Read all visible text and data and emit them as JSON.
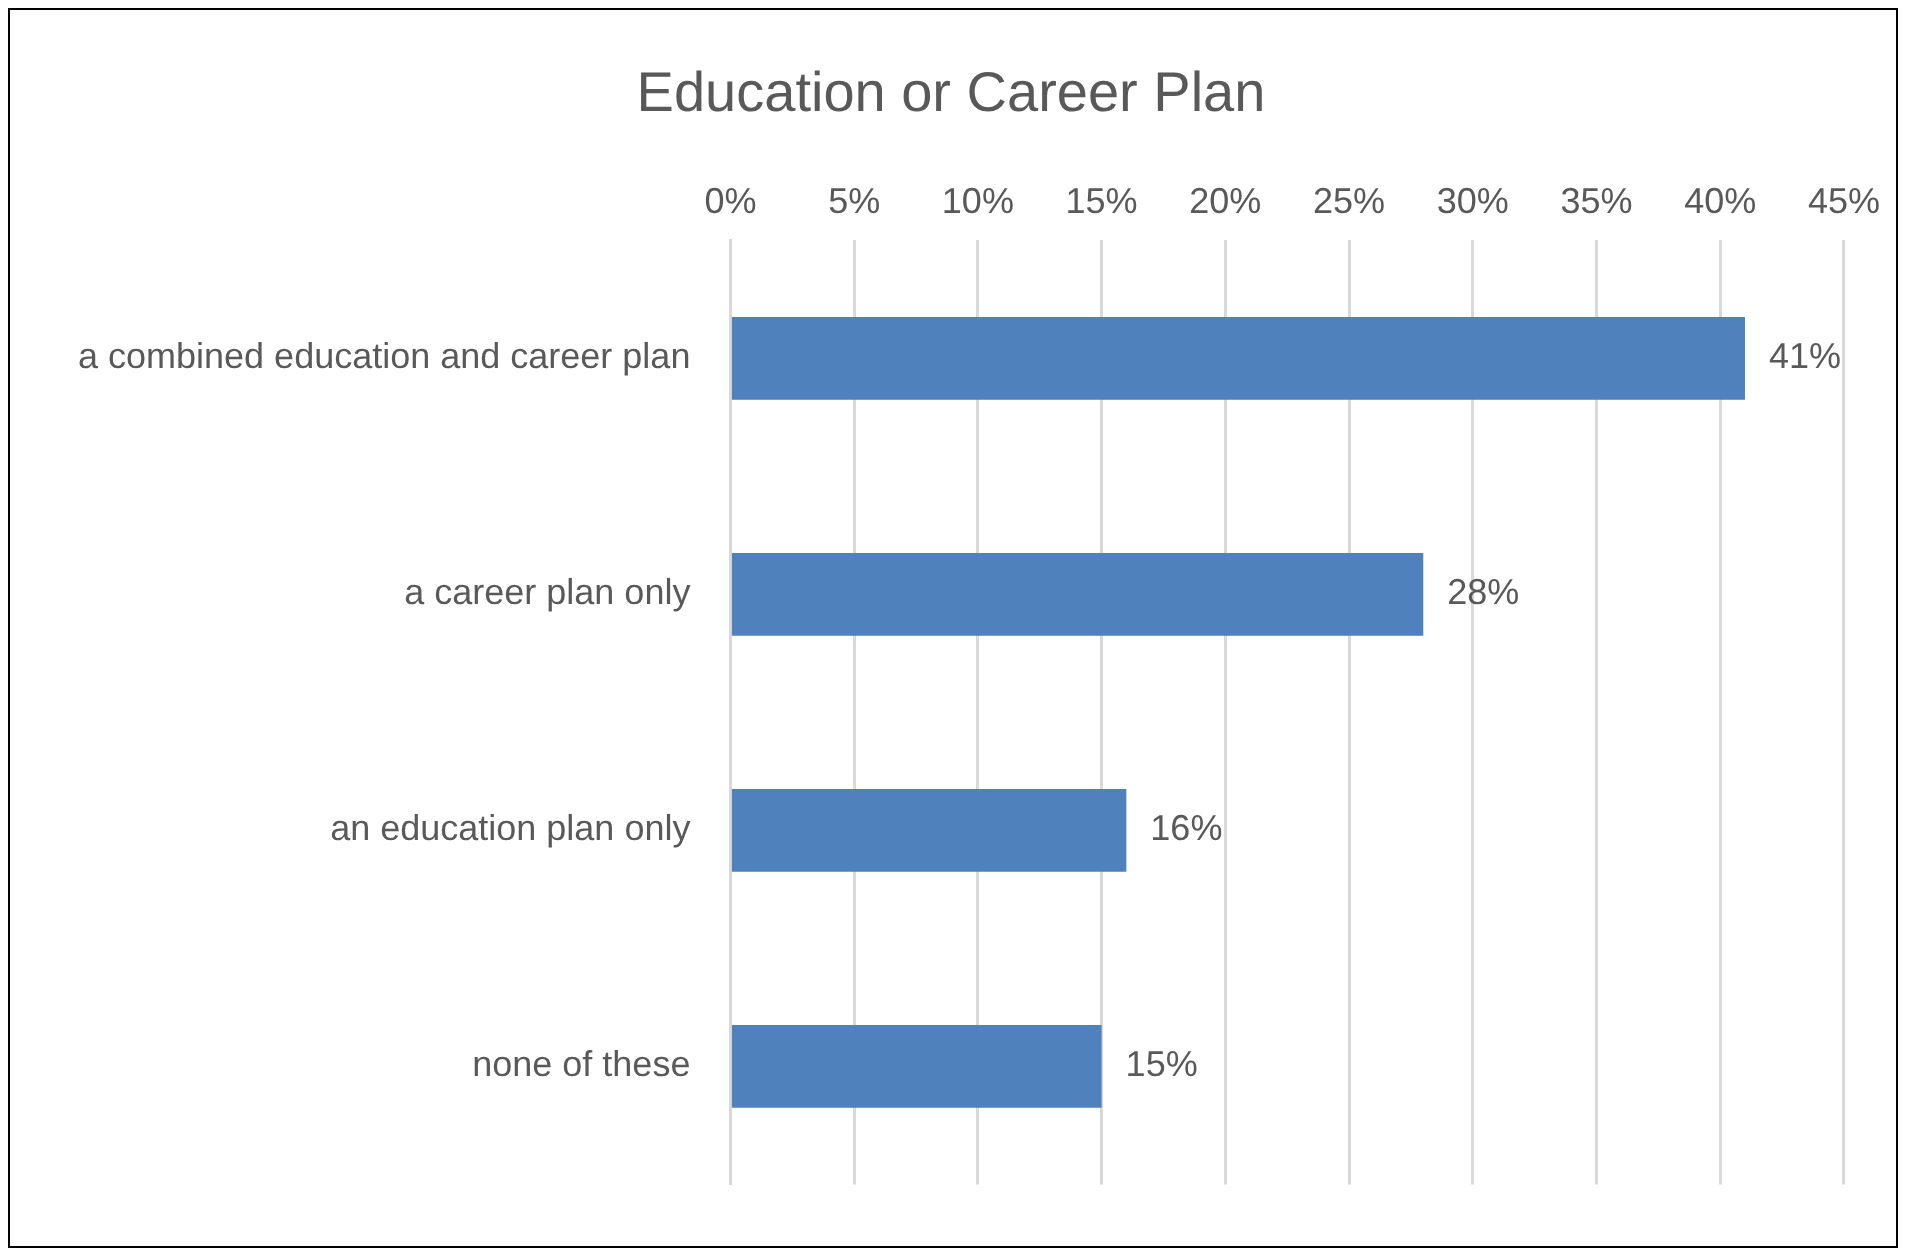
{
  "chart_data": {
    "type": "bar",
    "orientation": "horizontal",
    "title": "Education or Career Plan",
    "categories": [
      "a combined education and career plan",
      "a career plan only",
      "an education plan only",
      "none of these"
    ],
    "values": [
      41,
      28,
      16,
      15
    ],
    "color": "#4f81bd",
    "value_labels": [
      "41%",
      "28%",
      "16%",
      "15%"
    ],
    "xlim": [
      0,
      45
    ],
    "xticks": [
      {
        "value": 0,
        "label": "0%"
      },
      {
        "value": 5,
        "label": "5%"
      },
      {
        "value": 10,
        "label": "10%"
      },
      {
        "value": 15,
        "label": "15%"
      },
      {
        "value": 20,
        "label": "20%"
      },
      {
        "value": 25,
        "label": "25%"
      },
      {
        "value": 30,
        "label": "30%"
      },
      {
        "value": 35,
        "label": "35%"
      },
      {
        "value": 40,
        "label": "40%"
      },
      {
        "value": 45,
        "label": "45%"
      }
    ],
    "grid": "x",
    "legend": false
  }
}
